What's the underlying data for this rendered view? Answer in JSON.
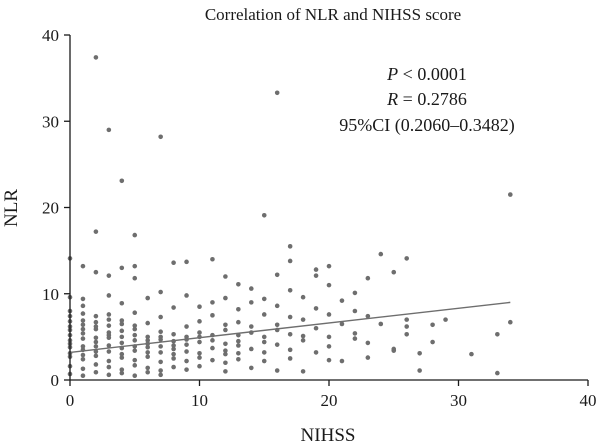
{
  "chart_data": {
    "type": "scatter",
    "title": "Correlation of NLR and NIHSS score",
    "xlabel": "NIHSS",
    "ylabel": "NLR",
    "xlim": [
      0,
      40
    ],
    "ylim": [
      0,
      40
    ],
    "xticks": [
      0,
      10,
      20,
      30,
      40
    ],
    "yticks": [
      0,
      10,
      20,
      30,
      40
    ],
    "grid": false,
    "point_color": "#6e6e6e",
    "annotations": {
      "p_label": "P",
      "p_value": " < 0.0001",
      "r_label": "R",
      "r_value": " = 0.2786",
      "ci": "95%CI (0.2060–0.3482)"
    },
    "fit_line": {
      "x": [
        0,
        34
      ],
      "y": [
        3.2,
        9.0
      ]
    },
    "points": [
      [
        2,
        37.4
      ],
      [
        16,
        33.3
      ],
      [
        3,
        29.0
      ],
      [
        7,
        28.2
      ],
      [
        4,
        23.1
      ],
      [
        34,
        21.5
      ],
      [
        15,
        19.1
      ],
      [
        2,
        17.2
      ],
      [
        5,
        16.8
      ],
      [
        17,
        15.5
      ],
      [
        24,
        14.6
      ],
      [
        0,
        14.1
      ],
      [
        11,
        14.0
      ],
      [
        26,
        14.1
      ],
      [
        17,
        13.8
      ],
      [
        8,
        13.6
      ],
      [
        9,
        13.7
      ],
      [
        1,
        13.2
      ],
      [
        4,
        13.0
      ],
      [
        5,
        13.2
      ],
      [
        20,
        13.2
      ],
      [
        19,
        12.8
      ],
      [
        25,
        12.5
      ],
      [
        2,
        12.5
      ],
      [
        3,
        12.1
      ],
      [
        12,
        12.0
      ],
      [
        16,
        12.2
      ],
      [
        19,
        12.1
      ],
      [
        23,
        11.8
      ],
      [
        13,
        11.1
      ],
      [
        5,
        11.8
      ],
      [
        20,
        11.0
      ],
      [
        14,
        10.6
      ],
      [
        17,
        10.4
      ],
      [
        7,
        10.2
      ],
      [
        22,
        10.1
      ],
      [
        0,
        9.6
      ],
      [
        1,
        9.4
      ],
      [
        3,
        9.8
      ],
      [
        6,
        9.5
      ],
      [
        9,
        9.8
      ],
      [
        12,
        9.5
      ],
      [
        15,
        9.4
      ],
      [
        18,
        9.6
      ],
      [
        21,
        9.2
      ],
      [
        11,
        9.0
      ],
      [
        14,
        9.0
      ],
      [
        4,
        8.9
      ],
      [
        8,
        8.4
      ],
      [
        10,
        8.5
      ],
      [
        13,
        8.2
      ],
      [
        16,
        8.6
      ],
      [
        19,
        8.3
      ],
      [
        22,
        8.0
      ],
      [
        0,
        8.0
      ],
      [
        1,
        7.7
      ],
      [
        2,
        7.4
      ],
      [
        3,
        7.6
      ],
      [
        5,
        7.8
      ],
      [
        7,
        7.3
      ],
      [
        11,
        7.5
      ],
      [
        15,
        7.6
      ],
      [
        17,
        7.3
      ],
      [
        20,
        7.6
      ],
      [
        26,
        7.0
      ],
      [
        29,
        7.0
      ],
      [
        23,
        7.4
      ],
      [
        18,
        7.0
      ],
      [
        0,
        6.8
      ],
      [
        1,
        6.4
      ],
      [
        2,
        6.7
      ],
      [
        3,
        6.3
      ],
      [
        4,
        6.5
      ],
      [
        5,
        6.3
      ],
      [
        6,
        6.6
      ],
      [
        9,
        6.2
      ],
      [
        10,
        6.8
      ],
      [
        12,
        6.4
      ],
      [
        13,
        6.7
      ],
      [
        14,
        6.2
      ],
      [
        16,
        6.4
      ],
      [
        19,
        6.0
      ],
      [
        21,
        6.5
      ],
      [
        24,
        6.5
      ],
      [
        26,
        6.2
      ],
      [
        28,
        6.4
      ],
      [
        34,
        6.7
      ],
      [
        33,
        5.3
      ],
      [
        0,
        5.8
      ],
      [
        1,
        5.4
      ],
      [
        2,
        5.9
      ],
      [
        3,
        5.5
      ],
      [
        4,
        5.7
      ],
      [
        5,
        5.2
      ],
      [
        6,
        5.0
      ],
      [
        7,
        5.6
      ],
      [
        8,
        5.3
      ],
      [
        9,
        5.0
      ],
      [
        10,
        5.5
      ],
      [
        11,
        5.2
      ],
      [
        12,
        5.8
      ],
      [
        14,
        5.5
      ],
      [
        15,
        5.0
      ],
      [
        17,
        5.3
      ],
      [
        18,
        5.1
      ],
      [
        20,
        5.0
      ],
      [
        22,
        5.4
      ],
      [
        26,
        5.3
      ],
      [
        0,
        4.6
      ],
      [
        1,
        4.8
      ],
      [
        2,
        4.4
      ],
      [
        3,
        4.9
      ],
      [
        4,
        4.3
      ],
      [
        5,
        4.6
      ],
      [
        6,
        4.2
      ],
      [
        7,
        4.7
      ],
      [
        8,
        4.5
      ],
      [
        9,
        4.1
      ],
      [
        10,
        4.4
      ],
      [
        11,
        4.6
      ],
      [
        12,
        4.2
      ],
      [
        13,
        4.5
      ],
      [
        15,
        4.4
      ],
      [
        16,
        4.1
      ],
      [
        18,
        4.6
      ],
      [
        23,
        4.3
      ],
      [
        28,
        4.4
      ],
      [
        0,
        3.8
      ],
      [
        1,
        3.5
      ],
      [
        2,
        3.9
      ],
      [
        3,
        3.3
      ],
      [
        4,
        3.7
      ],
      [
        5,
        3.4
      ],
      [
        6,
        3.8
      ],
      [
        7,
        3.2
      ],
      [
        8,
        3.6
      ],
      [
        9,
        3.3
      ],
      [
        10,
        3.1
      ],
      [
        11,
        3.7
      ],
      [
        12,
        3.4
      ],
      [
        13,
        3.1
      ],
      [
        14,
        3.6
      ],
      [
        17,
        3.5
      ],
      [
        19,
        3.2
      ],
      [
        25,
        3.4
      ],
      [
        27,
        3.1
      ],
      [
        31,
        3.0
      ],
      [
        0,
        2.7
      ],
      [
        1,
        2.4
      ],
      [
        2,
        2.8
      ],
      [
        3,
        2.2
      ],
      [
        4,
        2.6
      ],
      [
        5,
        2.3
      ],
      [
        6,
        2.7
      ],
      [
        7,
        2.1
      ],
      [
        8,
        2.5
      ],
      [
        9,
        2.2
      ],
      [
        10,
        2.6
      ],
      [
        11,
        2.3
      ],
      [
        12,
        2.0
      ],
      [
        13,
        2.4
      ],
      [
        15,
        2.2
      ],
      [
        17,
        2.5
      ],
      [
        20,
        2.3
      ],
      [
        21,
        2.2
      ],
      [
        23,
        2.6
      ],
      [
        0,
        1.6
      ],
      [
        1,
        1.3
      ],
      [
        2,
        1.8
      ],
      [
        3,
        1.5
      ],
      [
        4,
        1.2
      ],
      [
        5,
        1.7
      ],
      [
        6,
        1.4
      ],
      [
        7,
        1.1
      ],
      [
        8,
        1.5
      ],
      [
        9,
        1.2
      ],
      [
        10,
        1.6
      ],
      [
        12,
        1.0
      ],
      [
        14,
        1.4
      ],
      [
        16,
        1.1
      ],
      [
        18,
        1.0
      ],
      [
        27,
        1.1
      ],
      [
        33,
        0.8
      ],
      [
        0,
        0.7
      ],
      [
        1,
        0.5
      ],
      [
        2,
        0.9
      ],
      [
        3,
        0.6
      ],
      [
        4,
        0.8
      ],
      [
        5,
        0.5
      ],
      [
        6,
        0.9
      ],
      [
        7,
        0.6
      ],
      [
        0,
        3.1
      ],
      [
        0,
        4.2
      ],
      [
        0,
        5.2
      ],
      [
        0,
        6.2
      ],
      [
        0,
        7.4
      ],
      [
        1,
        2.9
      ],
      [
        1,
        3.9
      ],
      [
        1,
        5.9
      ],
      [
        1,
        6.9
      ],
      [
        1,
        8.6
      ],
      [
        2,
        3.3
      ],
      [
        2,
        4.9
      ],
      [
        2,
        6.2
      ],
      [
        3,
        4.0
      ],
      [
        3,
        5.2
      ],
      [
        3,
        7.0
      ],
      [
        4,
        3.0
      ],
      [
        4,
        5.0
      ],
      [
        4,
        6.9
      ],
      [
        5,
        3.9
      ],
      [
        5,
        5.9
      ],
      [
        6,
        3.2
      ],
      [
        6,
        4.6
      ],
      [
        7,
        3.9
      ],
      [
        7,
        5.0
      ],
      [
        8,
        3.0
      ],
      [
        8,
        4.0
      ],
      [
        9,
        4.7
      ],
      [
        10,
        5.0
      ],
      [
        12,
        3.0
      ],
      [
        13,
        5.2
      ],
      [
        16,
        5.8
      ],
      [
        25,
        3.6
      ],
      [
        13,
        4.0
      ],
      [
        22,
        4.8
      ],
      [
        20,
        3.9
      ],
      [
        15,
        3.2
      ]
    ]
  }
}
